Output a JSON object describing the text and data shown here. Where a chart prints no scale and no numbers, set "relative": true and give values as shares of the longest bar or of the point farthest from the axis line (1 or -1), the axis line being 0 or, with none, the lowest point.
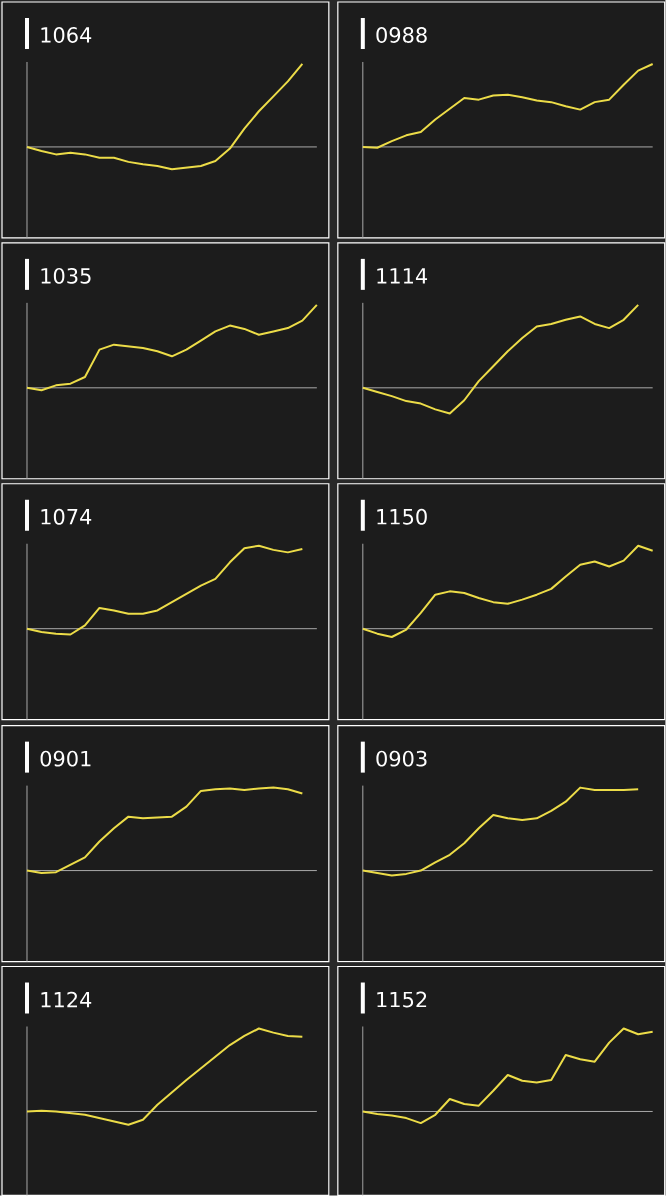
{
  "chart_data": [
    {
      "type": "line",
      "title": "1064",
      "relative": true,
      "categories": [
        null,
        null,
        null,
        null,
        null,
        null,
        null,
        null,
        null,
        null,
        null,
        null,
        null,
        null,
        null,
        null,
        null,
        null,
        null,
        null,
        null
      ],
      "series": [
        {
          "color": "#ecdc48",
          "values": [
            0,
            -0.05,
            -0.09,
            -0.07,
            -0.09,
            -0.13,
            -0.13,
            -0.18,
            -0.21,
            -0.23,
            -0.27,
            -0.25,
            -0.23,
            -0.17,
            -0.02,
            0.22,
            0.43,
            0.61,
            0.79,
            1.0,
            null
          ]
        }
      ]
    },
    {
      "type": "line",
      "title": "0988",
      "relative": true,
      "categories": [
        null,
        null,
        null,
        null,
        null,
        null,
        null,
        null,
        null,
        null,
        null,
        null,
        null,
        null,
        null,
        null,
        null,
        null,
        null,
        null,
        null
      ],
      "series": [
        {
          "color": "#ecdc48",
          "values": [
            0,
            -0.01,
            0.07,
            0.14,
            0.18,
            0.33,
            0.46,
            0.59,
            0.57,
            0.62,
            0.63,
            0.6,
            0.56,
            0.54,
            0.49,
            0.45,
            0.54,
            0.57,
            0.75,
            0.92,
            1.0
          ]
        }
      ]
    },
    {
      "type": "line",
      "title": "1035",
      "relative": true,
      "categories": [
        null,
        null,
        null,
        null,
        null,
        null,
        null,
        null,
        null,
        null,
        null,
        null,
        null,
        null,
        null,
        null,
        null,
        null,
        null,
        null,
        null
      ],
      "series": [
        {
          "color": "#ecdc48",
          "values": [
            0,
            -0.03,
            0.03,
            0.05,
            0.13,
            0.46,
            0.52,
            0.5,
            0.48,
            0.44,
            0.38,
            0.46,
            0.57,
            0.68,
            0.75,
            0.71,
            0.64,
            0.68,
            0.72,
            0.81,
            1.0
          ]
        }
      ]
    },
    {
      "type": "line",
      "title": "1114",
      "relative": true,
      "categories": [
        null,
        null,
        null,
        null,
        null,
        null,
        null,
        null,
        null,
        null,
        null,
        null,
        null,
        null,
        null,
        null,
        null,
        null,
        null,
        null,
        null
      ],
      "series": [
        {
          "color": "#ecdc48",
          "values": [
            0,
            -0.05,
            -0.1,
            -0.16,
            -0.19,
            -0.26,
            -0.31,
            -0.15,
            0.08,
            0.26,
            0.44,
            0.6,
            0.74,
            0.77,
            0.82,
            0.86,
            0.77,
            0.72,
            0.82,
            1.0,
            null
          ]
        }
      ]
    },
    {
      "type": "line",
      "title": "1074",
      "relative": true,
      "categories": [
        null,
        null,
        null,
        null,
        null,
        null,
        null,
        null,
        null,
        null,
        null,
        null,
        null,
        null,
        null,
        null,
        null,
        null,
        null,
        null,
        null
      ],
      "series": [
        {
          "color": "#ecdc48",
          "values": [
            0,
            -0.04,
            -0.06,
            -0.07,
            0.04,
            0.25,
            0.22,
            0.18,
            0.18,
            0.22,
            0.32,
            0.42,
            0.52,
            0.6,
            0.8,
            0.97,
            1.0,
            0.95,
            0.92,
            0.96,
            null
          ]
        }
      ]
    },
    {
      "type": "line",
      "title": "1150",
      "relative": true,
      "categories": [
        null,
        null,
        null,
        null,
        null,
        null,
        null,
        null,
        null,
        null,
        null,
        null,
        null,
        null,
        null,
        null,
        null,
        null,
        null,
        null,
        null
      ],
      "series": [
        {
          "color": "#ecdc48",
          "values": [
            0,
            -0.06,
            -0.1,
            -0.01,
            0.19,
            0.41,
            0.45,
            0.43,
            0.37,
            0.32,
            0.3,
            0.35,
            0.41,
            0.48,
            0.63,
            0.77,
            0.81,
            0.75,
            0.82,
            1.0,
            0.94
          ]
        }
      ]
    },
    {
      "type": "line",
      "title": "0901",
      "relative": true,
      "categories": [
        null,
        null,
        null,
        null,
        null,
        null,
        null,
        null,
        null,
        null,
        null,
        null,
        null,
        null,
        null,
        null,
        null,
        null,
        null,
        null,
        null
      ],
      "series": [
        {
          "color": "#ecdc48",
          "values": [
            0,
            -0.03,
            -0.02,
            0.07,
            0.16,
            0.35,
            0.51,
            0.65,
            0.63,
            0.64,
            0.65,
            0.77,
            0.96,
            0.98,
            0.99,
            0.97,
            0.99,
            1.0,
            0.98,
            0.93,
            null
          ]
        }
      ]
    },
    {
      "type": "line",
      "title": "0903",
      "relative": true,
      "categories": [
        null,
        null,
        null,
        null,
        null,
        null,
        null,
        null,
        null,
        null,
        null,
        null,
        null,
        null,
        null,
        null,
        null,
        null,
        null,
        null,
        null
      ],
      "series": [
        {
          "color": "#ecdc48",
          "values": [
            0,
            -0.03,
            -0.06,
            -0.04,
            0,
            0.1,
            0.19,
            0.33,
            0.51,
            0.67,
            0.63,
            0.61,
            0.63,
            0.72,
            0.83,
            1.0,
            0.97,
            0.97,
            0.97,
            0.98,
            null
          ]
        }
      ]
    },
    {
      "type": "line",
      "title": "1124",
      "relative": true,
      "categories": [
        null,
        null,
        null,
        null,
        null,
        null,
        null,
        null,
        null,
        null,
        null,
        null,
        null,
        null,
        null,
        null,
        null,
        null,
        null,
        null,
        null
      ],
      "series": [
        {
          "color": "#ecdc48",
          "values": [
            0,
            0.01,
            0,
            -0.02,
            -0.04,
            -0.08,
            -0.12,
            -0.16,
            -0.1,
            0.08,
            0.23,
            0.38,
            0.52,
            0.66,
            0.8,
            0.91,
            1.0,
            0.95,
            0.91,
            0.9,
            null
          ]
        }
      ]
    },
    {
      "type": "line",
      "title": "1152",
      "relative": true,
      "categories": [
        null,
        null,
        null,
        null,
        null,
        null,
        null,
        null,
        null,
        null,
        null,
        null,
        null,
        null,
        null,
        null,
        null,
        null,
        null,
        null,
        null
      ],
      "series": [
        {
          "color": "#ecdc48",
          "values": [
            0,
            -0.03,
            -0.05,
            -0.08,
            -0.14,
            -0.04,
            0.15,
            0.09,
            0.07,
            0.25,
            0.44,
            0.37,
            0.35,
            0.38,
            0.68,
            0.63,
            0.6,
            0.83,
            1.0,
            0.93,
            0.96
          ]
        }
      ]
    }
  ]
}
